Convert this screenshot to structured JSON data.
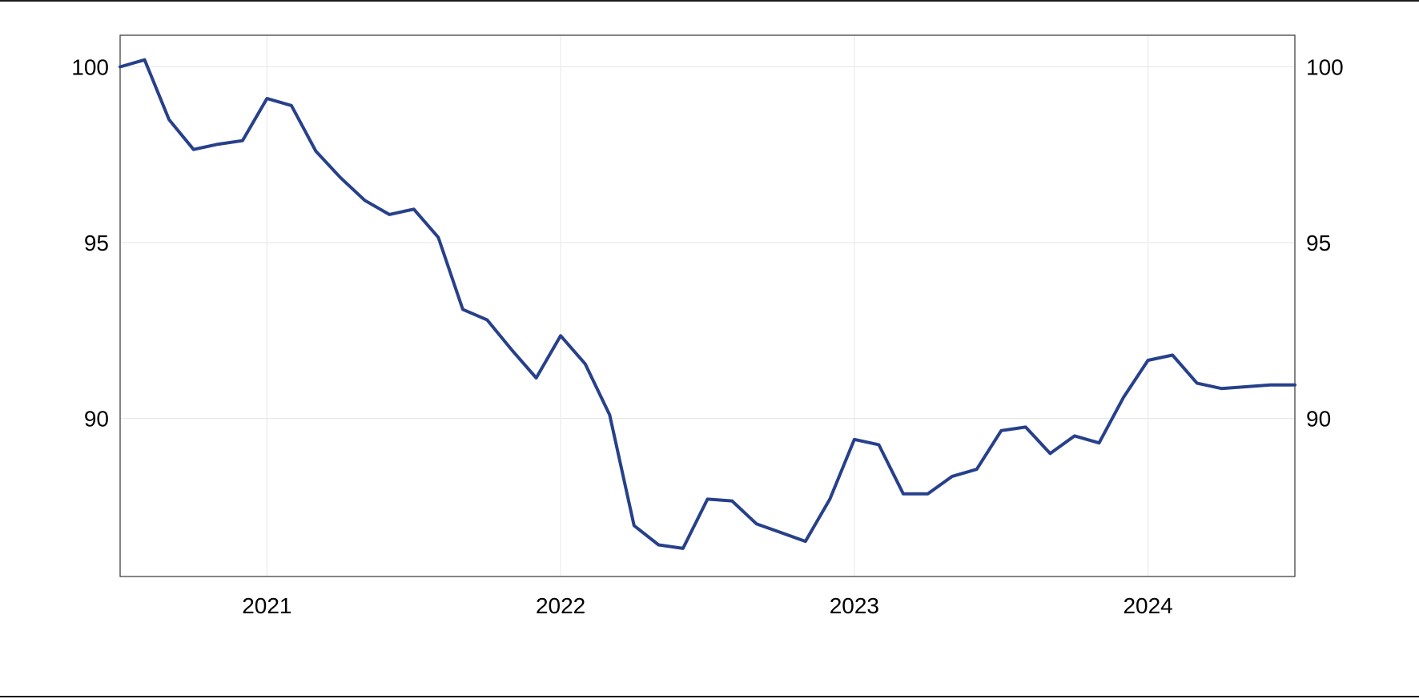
{
  "chart_data": {
    "type": "line",
    "title": "",
    "xlabel": "",
    "ylabel": "",
    "x_tick_labels": [
      "2021",
      "2022",
      "2023",
      "2024"
    ],
    "y_ticks": [
      90,
      95,
      100
    ],
    "y_tick_labels": [
      "90",
      "95",
      "100"
    ],
    "ylim": [
      85.5,
      100.9
    ],
    "grid": true,
    "series": [
      {
        "color": "#27408b",
        "x": [
          "2020-07",
          "2020-08",
          "2020-09",
          "2020-10",
          "2020-11",
          "2020-12",
          "2021-01",
          "2021-02",
          "2021-03",
          "2021-04",
          "2021-05",
          "2021-06",
          "2021-07",
          "2021-08",
          "2021-09",
          "2021-10",
          "2021-11",
          "2021-12",
          "2022-01",
          "2022-02",
          "2022-03",
          "2022-04",
          "2022-05",
          "2022-06",
          "2022-07",
          "2022-08",
          "2022-09",
          "2022-10",
          "2022-11",
          "2022-12",
          "2023-01",
          "2023-02",
          "2023-03",
          "2023-04",
          "2023-05",
          "2023-06",
          "2023-07",
          "2023-08",
          "2023-09",
          "2023-10",
          "2023-11",
          "2023-12",
          "2024-01",
          "2024-02",
          "2024-03",
          "2024-04",
          "2024-05",
          "2024-06",
          "2024-07"
        ],
        "values": [
          100.0,
          100.2,
          98.5,
          97.65,
          97.8,
          97.9,
          99.1,
          98.9,
          97.6,
          96.85,
          96.2,
          95.8,
          95.95,
          95.15,
          93.1,
          92.8,
          91.95,
          91.15,
          92.35,
          91.55,
          90.1,
          86.95,
          86.4,
          86.3,
          87.7,
          87.65,
          87.0,
          86.75,
          86.5,
          87.7,
          89.4,
          89.25,
          87.85,
          87.85,
          88.35,
          88.55,
          89.65,
          89.75,
          89.0,
          89.5,
          89.3,
          90.6,
          91.65,
          91.8,
          91.0,
          90.85,
          90.9,
          90.95,
          90.95
        ]
      }
    ]
  }
}
